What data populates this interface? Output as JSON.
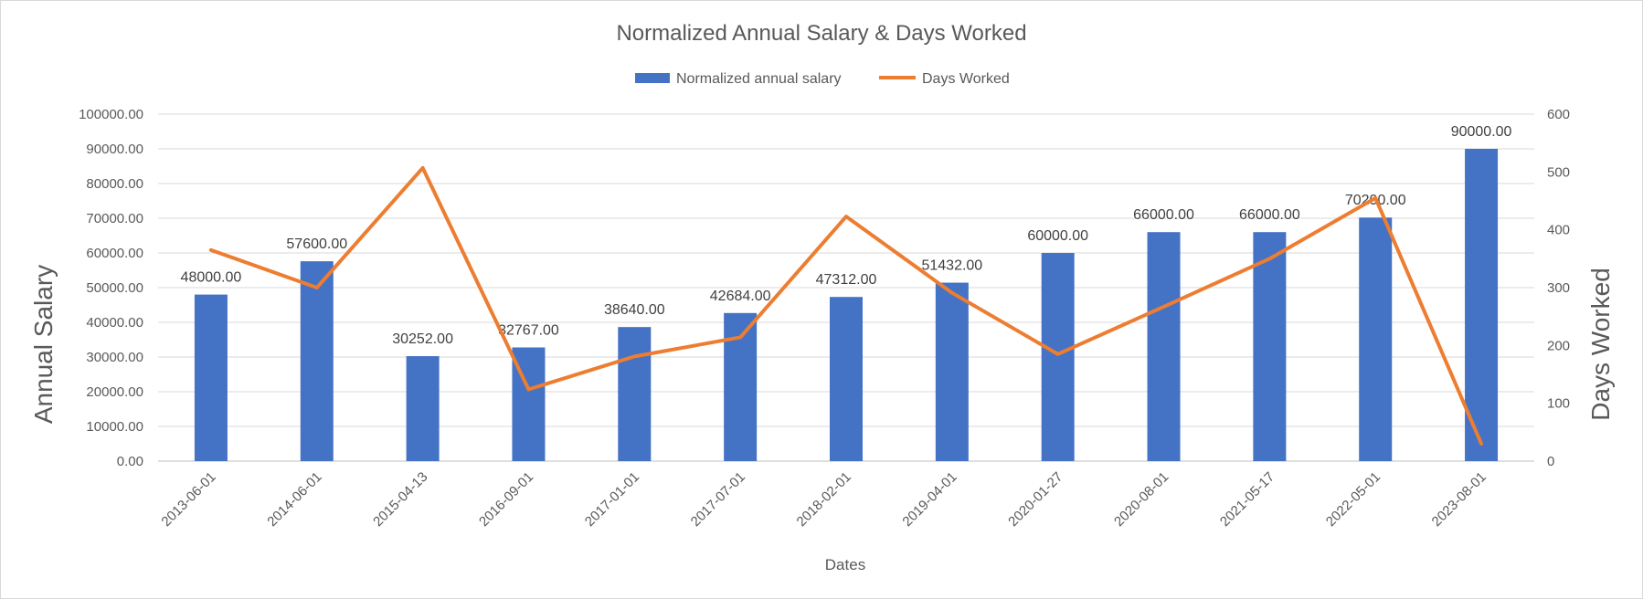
{
  "chart_data": {
    "type": "bar",
    "title": "Normalized Annual Salary & Days Worked",
    "xlabel": "Dates",
    "ylabel": "Annual Salary",
    "y2label": "Days Worked",
    "categories": [
      "2013-06-01",
      "2014-06-01",
      "2015-04-13",
      "2016-09-01",
      "2017-01-01",
      "2017-07-01",
      "2018-02-01",
      "2019-04-01",
      "2020-01-27",
      "2020-08-01",
      "2021-05-17",
      "2022-05-01",
      "2023-08-01"
    ],
    "ylim": [
      0,
      100000
    ],
    "y2lim": [
      0,
      600
    ],
    "yticks": [
      "0.00",
      "10000.00",
      "20000.00",
      "30000.00",
      "40000.00",
      "50000.00",
      "60000.00",
      "70000.00",
      "80000.00",
      "90000.00",
      "100000.00"
    ],
    "y2ticks": [
      "0",
      "100",
      "200",
      "300",
      "400",
      "500",
      "600"
    ],
    "grid": true,
    "legend": "top",
    "series": [
      {
        "name": "Normalized annual salary",
        "type": "bar",
        "axis": "left",
        "color": "#4472c4",
        "values": [
          48000,
          57600,
          30252,
          32767,
          38640,
          42684,
          47312,
          51432,
          60000,
          66000,
          66000,
          70200,
          90000
        ],
        "labels": [
          "48000.00",
          "57600.00",
          "30252.00",
          "32767.00",
          "38640.00",
          "42684.00",
          "47312.00",
          "51432.00",
          "60000.00",
          "66000.00",
          "66000.00",
          "70200.00",
          "90000.00"
        ]
      },
      {
        "name": "Days Worked",
        "type": "line",
        "axis": "right",
        "color": "#ed7d31",
        "values": [
          365,
          300,
          507,
          124,
          181,
          214,
          423,
          291,
          185,
          267,
          350,
          455,
          30
        ]
      }
    ]
  }
}
